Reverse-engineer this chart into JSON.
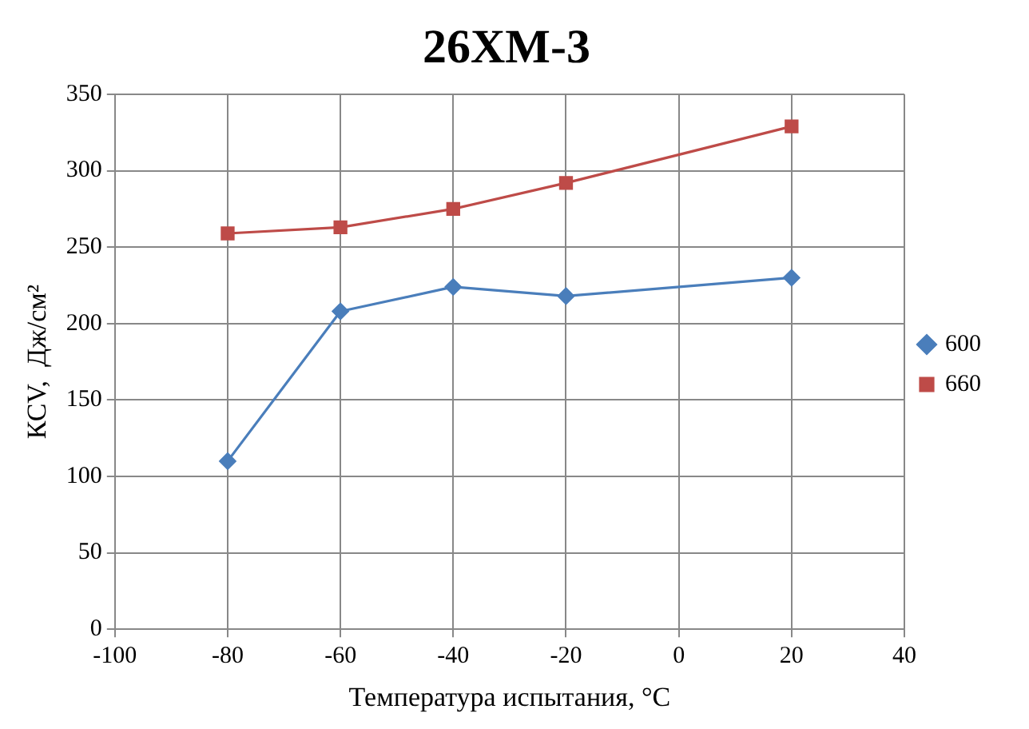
{
  "chart_data": {
    "type": "line",
    "title": "26ХМ-3",
    "xlabel": "Температура испытания, °С",
    "ylabel": "КСV,  Дж/см²",
    "x": [
      -80,
      -60,
      -40,
      -20,
      20
    ],
    "series": [
      {
        "name": "600",
        "color": "#4a7ebb",
        "marker": "diamond",
        "values": [
          110,
          208,
          224,
          218,
          230
        ]
      },
      {
        "name": "660",
        "color": "#be4b48",
        "marker": "square",
        "values": [
          259,
          263,
          275,
          292,
          329
        ]
      }
    ],
    "xlim": [
      -100,
      40
    ],
    "xticks": [
      -100,
      -80,
      -60,
      -40,
      -20,
      0,
      20,
      40
    ],
    "ylim": [
      0,
      350
    ],
    "yticks": [
      0,
      50,
      100,
      150,
      200,
      250,
      300,
      350
    ],
    "grid": true,
    "legend": "right"
  }
}
